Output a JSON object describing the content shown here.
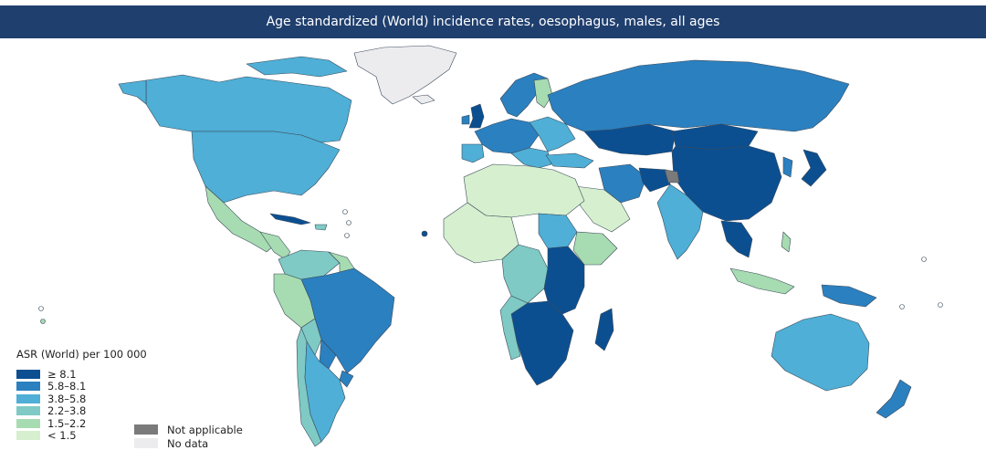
{
  "title": "Age standardized (World) incidence rates, oesophagus, males, all ages",
  "legend": {
    "title": "ASR (World) per 100 000",
    "items": [
      {
        "label": "≥ 8.1",
        "color": "#0b4f91"
      },
      {
        "label": "5.8–8.1",
        "color": "#2b80bf"
      },
      {
        "label": "3.8–5.8",
        "color": "#4fafd6"
      },
      {
        "label": "2.2–3.8",
        "color": "#7fcac4"
      },
      {
        "label": "1.5–2.2",
        "color": "#a7dbb1"
      },
      {
        "label": "< 1.5",
        "color": "#d6efcf"
      }
    ],
    "extra": [
      {
        "label": "Not applicable",
        "color": "#7a7a7a"
      },
      {
        "label": "No data",
        "color": "#ececef"
      }
    ]
  }
}
